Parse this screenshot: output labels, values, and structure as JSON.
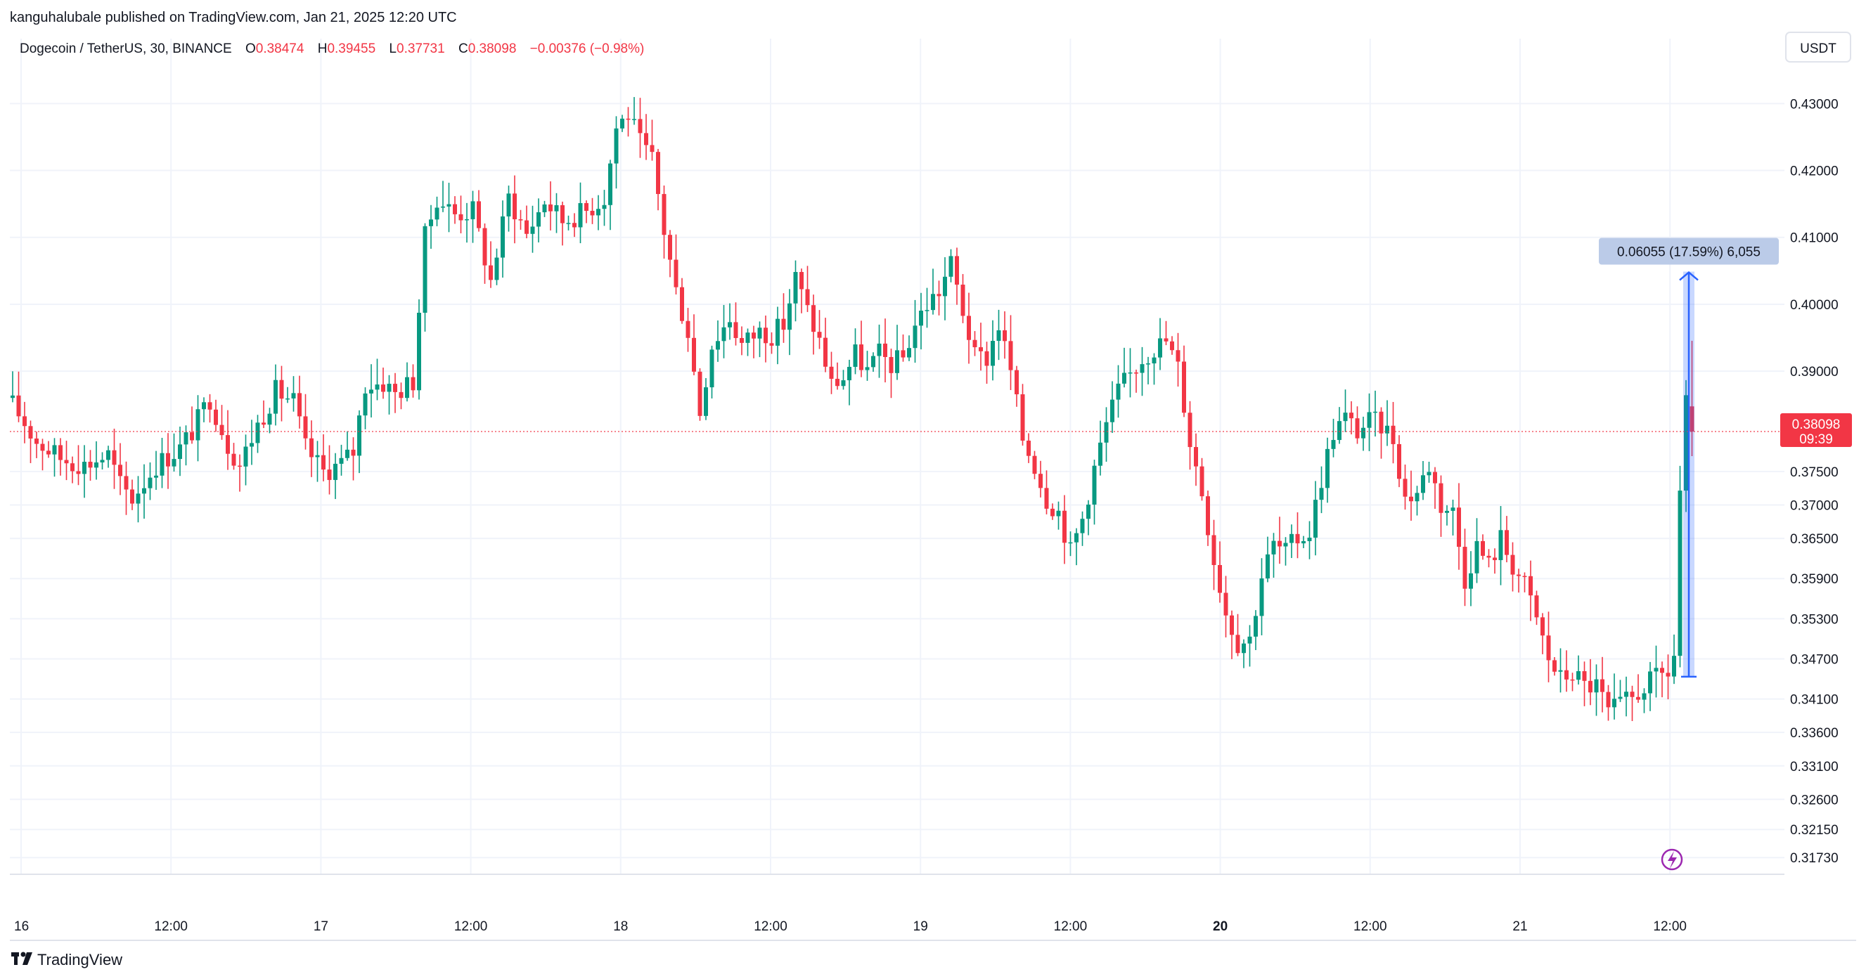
{
  "header": {
    "published_by": "kanguhalubale published on TradingView.com, Jan 21, 2025 12:20 UTC"
  },
  "legend": {
    "symbol": "Dogecoin / TetherUS, 30, BINANCE",
    "open_label": "O",
    "open": "0.38474",
    "high_label": "H",
    "high": "0.39455",
    "low_label": "L",
    "low": "0.37731",
    "close_label": "C",
    "close": "0.38098",
    "change": "−0.00376 (−0.98%)"
  },
  "currency_button": "USDT",
  "current_price_tag": {
    "price": "0.38098",
    "countdown": "09:39"
  },
  "measure_label": "0.06055 (17.59%) 6,055",
  "footer_logo": "TradingView",
  "colors": {
    "up": "#089981",
    "down": "#f23645",
    "measure": "#2962ff",
    "grid": "#f0f3fa",
    "text": "#131722"
  },
  "chart_data": {
    "type": "candlestick",
    "symbol": "DOGEUSDT",
    "interval": "30",
    "y_axis": {
      "ticks": [
        "0.43000",
        "0.42000",
        "0.41000",
        "0.40000",
        "0.39000",
        "0.37500",
        "0.37000",
        "0.36500",
        "0.35900",
        "0.35300",
        "0.34700",
        "0.34100",
        "0.33600",
        "0.33100",
        "0.32600",
        "0.32150",
        "0.31730"
      ],
      "range": [
        0.3148,
        0.4355
      ]
    },
    "x_axis": {
      "labels": [
        {
          "text": "16",
          "bold": false
        },
        {
          "text": "12:00",
          "bold": false
        },
        {
          "text": "17",
          "bold": false
        },
        {
          "text": "12:00",
          "bold": false
        },
        {
          "text": "18",
          "bold": false
        },
        {
          "text": "12:00",
          "bold": false
        },
        {
          "text": "19",
          "bold": false
        },
        {
          "text": "12:00",
          "bold": false
        },
        {
          "text": "20",
          "bold": true
        },
        {
          "text": "12:00",
          "bold": false
        },
        {
          "text": "21",
          "bold": false
        },
        {
          "text": "12:00",
          "bold": false
        }
      ]
    },
    "price_path": [
      [
        0,
        0.385
      ],
      [
        4,
        0.3795
      ],
      [
        8,
        0.377
      ],
      [
        12,
        0.376
      ],
      [
        16,
        0.3775
      ],
      [
        18,
        0.373
      ],
      [
        20,
        0.371
      ],
      [
        24,
        0.376
      ],
      [
        28,
        0.3785
      ],
      [
        30,
        0.381
      ],
      [
        33,
        0.386
      ],
      [
        36,
        0.379
      ],
      [
        38,
        0.376
      ],
      [
        41,
        0.382
      ],
      [
        44,
        0.387
      ],
      [
        47,
        0.3855
      ],
      [
        49,
        0.3785
      ],
      [
        52,
        0.375
      ],
      [
        55,
        0.3762
      ],
      [
        57,
        0.378
      ],
      [
        59,
        0.388
      ],
      [
        62,
        0.3882
      ],
      [
        64,
        0.3867
      ],
      [
        67,
        0.3885
      ],
      [
        69,
        0.41
      ],
      [
        71,
        0.416
      ],
      [
        74,
        0.4135
      ],
      [
        77,
        0.414
      ],
      [
        80,
        0.4035
      ],
      [
        83,
        0.416
      ],
      [
        86,
        0.4105
      ],
      [
        89,
        0.4155
      ],
      [
        92,
        0.4125
      ],
      [
        96,
        0.414
      ],
      [
        99,
        0.416
      ],
      [
        101,
        0.4265
      ],
      [
        103,
        0.4285
      ],
      [
        105,
        0.424
      ],
      [
        107,
        0.4215
      ],
      [
        109,
        0.411
      ],
      [
        111,
        0.402
      ],
      [
        113,
        0.396
      ],
      [
        115,
        0.384
      ],
      [
        117,
        0.394
      ],
      [
        120,
        0.398
      ],
      [
        122,
        0.394
      ],
      [
        125,
        0.396
      ],
      [
        127,
        0.3955
      ],
      [
        129,
        0.397
      ],
      [
        131,
        0.404
      ],
      [
        133,
        0.399
      ],
      [
        135,
        0.3945
      ],
      [
        137,
        0.388
      ],
      [
        139,
        0.389
      ],
      [
        141,
        0.3925
      ],
      [
        143,
        0.39
      ],
      [
        145,
        0.3925
      ],
      [
        147,
        0.391
      ],
      [
        149,
        0.392
      ],
      [
        151,
        0.397
      ],
      [
        153,
        0.4
      ],
      [
        155,
        0.402
      ],
      [
        157,
        0.406
      ],
      [
        159,
        0.399
      ],
      [
        161,
        0.392
      ],
      [
        163,
        0.392
      ],
      [
        165,
        0.397
      ],
      [
        167,
        0.39
      ],
      [
        169,
        0.38
      ],
      [
        171,
        0.376
      ],
      [
        173,
        0.371
      ],
      [
        175,
        0.369
      ],
      [
        177,
        0.363
      ],
      [
        179,
        0.368
      ],
      [
        181,
        0.3755
      ],
      [
        183,
        0.382
      ],
      [
        185,
        0.387
      ],
      [
        187,
        0.3895
      ],
      [
        189,
        0.392
      ],
      [
        191,
        0.3935
      ],
      [
        193,
        0.3945
      ],
      [
        195,
        0.3905
      ],
      [
        197,
        0.3795
      ],
      [
        199,
        0.372
      ],
      [
        201,
        0.362
      ],
      [
        203,
        0.354
      ],
      [
        205,
        0.3495
      ],
      [
        207,
        0.35
      ],
      [
        209,
        0.3595
      ],
      [
        211,
        0.364
      ],
      [
        213,
        0.363
      ],
      [
        215,
        0.365
      ],
      [
        217,
        0.366
      ],
      [
        219,
        0.374
      ],
      [
        221,
        0.381
      ],
      [
        223,
        0.383
      ],
      [
        225,
        0.381
      ],
      [
        227,
        0.3825
      ],
      [
        229,
        0.382
      ],
      [
        231,
        0.38
      ],
      [
        233,
        0.371
      ],
      [
        235,
        0.372
      ],
      [
        237,
        0.376
      ],
      [
        239,
        0.37
      ],
      [
        241,
        0.369
      ],
      [
        243,
        0.359
      ],
      [
        245,
        0.364
      ],
      [
        247,
        0.361
      ],
      [
        249,
        0.365
      ],
      [
        251,
        0.361
      ],
      [
        253,
        0.358
      ],
      [
        255,
        0.353
      ],
      [
        257,
        0.347
      ],
      [
        259,
        0.344
      ],
      [
        261,
        0.345
      ],
      [
        263,
        0.343
      ],
      [
        265,
        0.343
      ],
      [
        267,
        0.339
      ],
      [
        269,
        0.34
      ],
      [
        271,
        0.341
      ],
      [
        273,
        0.343
      ],
      [
        275,
        0.344
      ],
      [
        277,
        0.345
      ],
      [
        278,
        0.3475
      ],
      [
        279,
        0.372
      ],
      [
        280,
        0.385
      ],
      [
        281,
        0.381
      ]
    ],
    "measure": {
      "from_price": 0.34433,
      "to_price": 0.40488,
      "change": 0.06055,
      "change_percent": 17.59,
      "ticks": 6055
    },
    "current_price": 0.38098,
    "grid": true
  }
}
